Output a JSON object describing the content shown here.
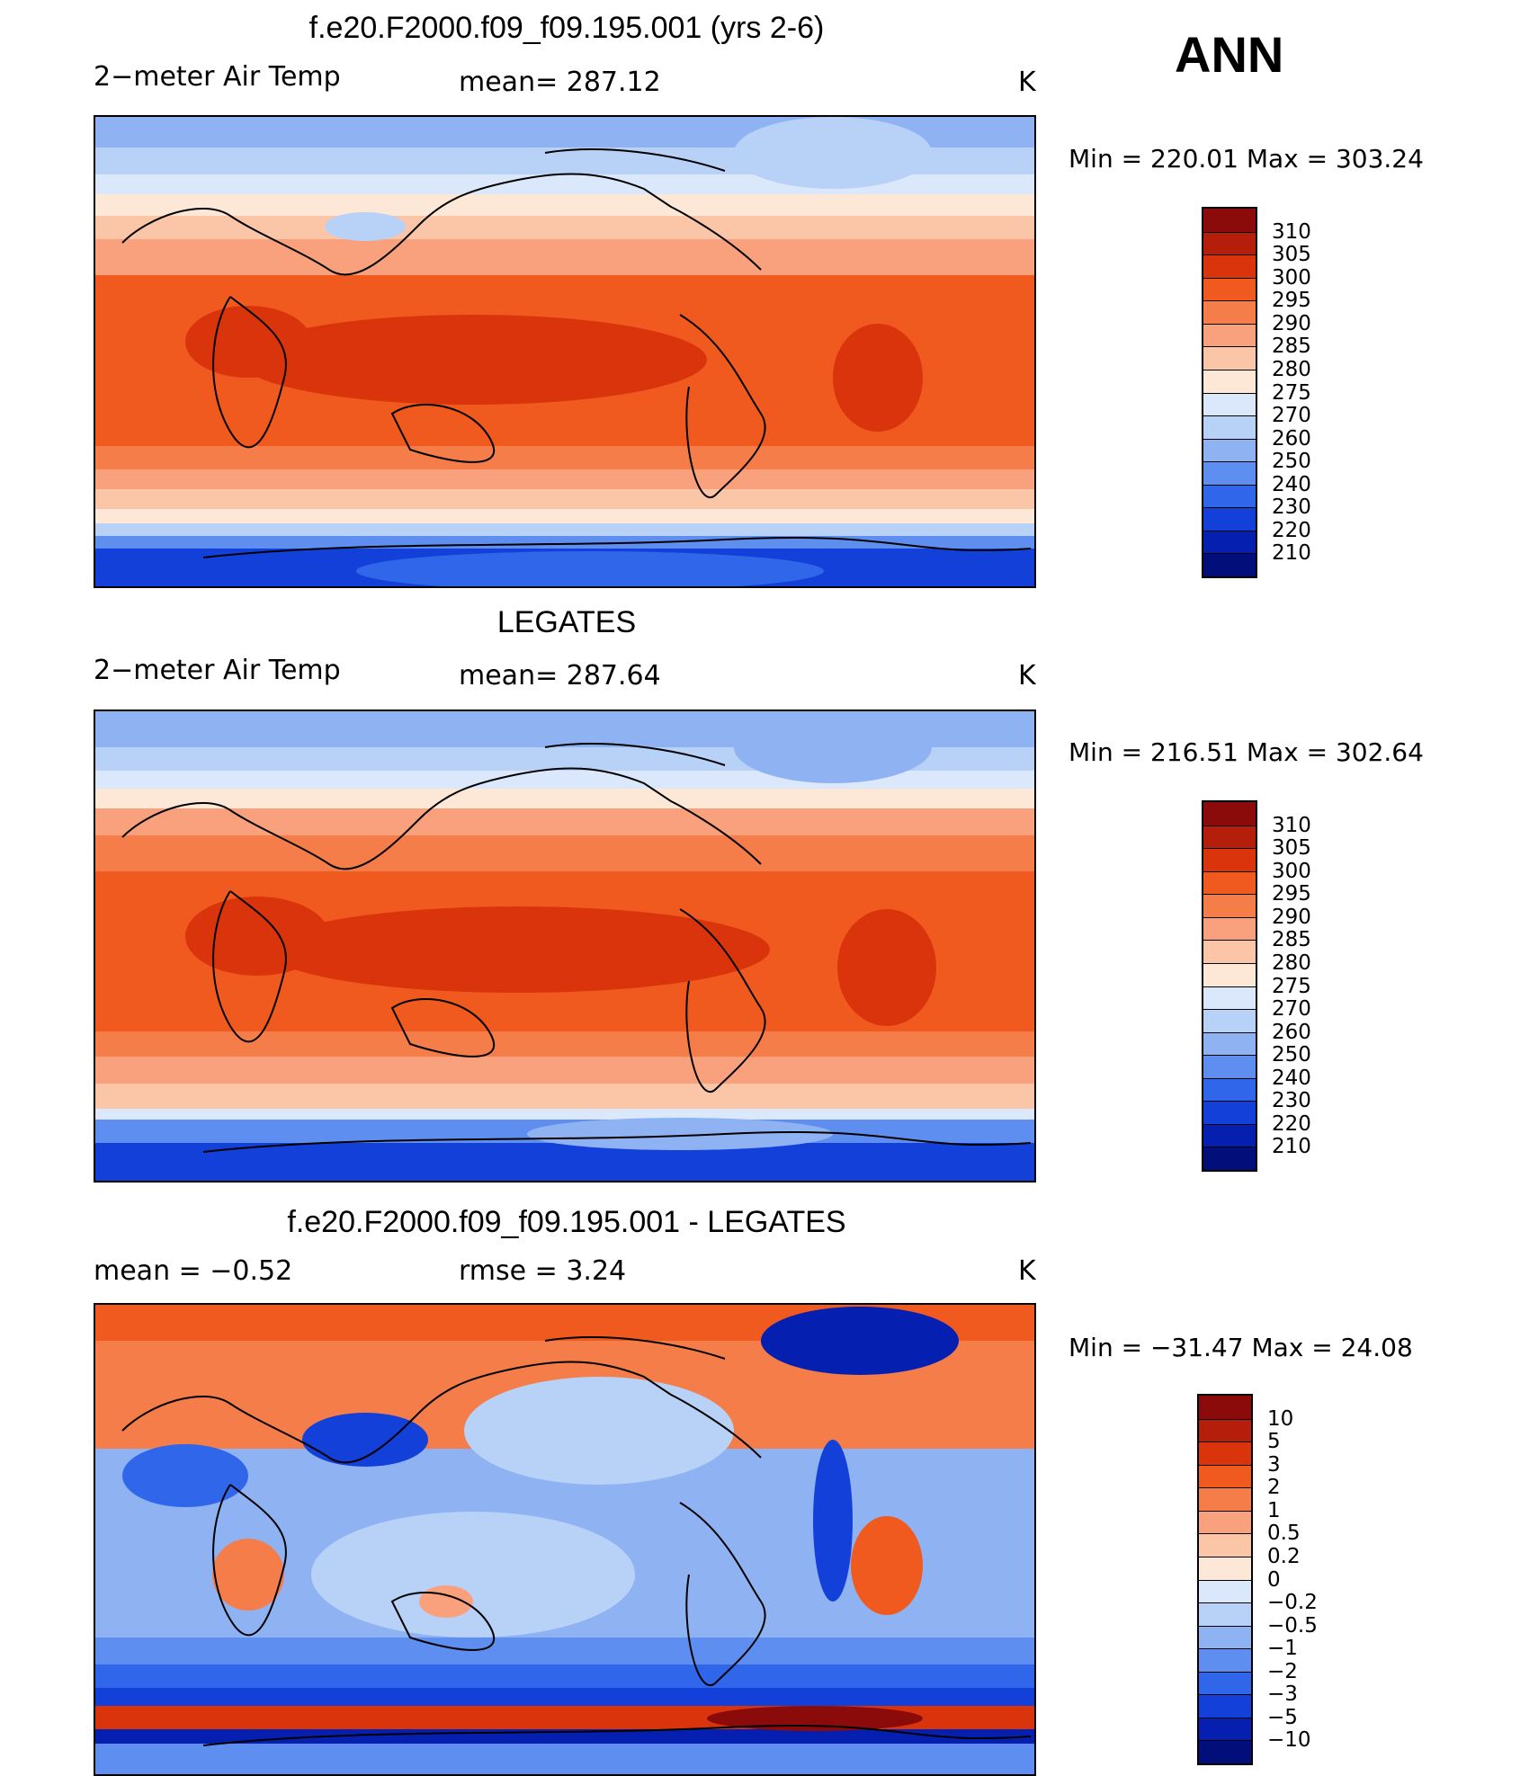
{
  "season": "ANN",
  "panels": [
    {
      "title": "f.e20.F2000.f09_f09.195.001 (yrs 2-6)",
      "left_label": "2−meter Air Temp",
      "center_label": "mean=  287.12",
      "units": "K",
      "minmax": "Min  =  220.01  Max  =  303.24",
      "map_kind": "model",
      "colorbar": {
        "labels": [
          "310",
          "305",
          "300",
          "295",
          "290",
          "285",
          "280",
          "275",
          "270",
          "260",
          "250",
          "240",
          "230",
          "220",
          "210"
        ],
        "colors": [
          "#8b0a0a",
          "#b41e0a",
          "#d9340c",
          "#f05a1e",
          "#f57d4a",
          "#f9a17c",
          "#fbc6a8",
          "#fde8d7",
          "#dbe8fb",
          "#b8d1f7",
          "#8fb3f2",
          "#5e8ff0",
          "#2f66ea",
          "#1240d9",
          "#0520b0",
          "#020f7a"
        ]
      }
    },
    {
      "title": "LEGATES",
      "left_label": "2−meter Air Temp",
      "center_label": "mean=  287.64",
      "units": "K",
      "minmax": "Min  =  216.51  Max  =  302.64",
      "map_kind": "obs",
      "colorbar": {
        "labels": [
          "310",
          "305",
          "300",
          "295",
          "290",
          "285",
          "280",
          "275",
          "270",
          "260",
          "250",
          "240",
          "230",
          "220",
          "210"
        ],
        "colors": [
          "#8b0a0a",
          "#b41e0a",
          "#d9340c",
          "#f05a1e",
          "#f57d4a",
          "#f9a17c",
          "#fbc6a8",
          "#fde8d7",
          "#dbe8fb",
          "#b8d1f7",
          "#8fb3f2",
          "#5e8ff0",
          "#2f66ea",
          "#1240d9",
          "#0520b0",
          "#020f7a"
        ]
      }
    },
    {
      "title": "f.e20.F2000.f09_f09.195.001 - LEGATES",
      "left_label": "mean  =    −0.52",
      "center_label": "rmse  =     3.24",
      "units": "K",
      "minmax": "Min  =  −31.47  Max  =   24.08",
      "map_kind": "diff",
      "colorbar": {
        "labels": [
          "10",
          "5",
          "3",
          "2",
          "1",
          "0.5",
          "0.2",
          "0",
          "−0.2",
          "−0.5",
          "−1",
          "−2",
          "−3",
          "−5",
          "−10"
        ],
        "colors": [
          "#8b0a0a",
          "#b41e0a",
          "#d9340c",
          "#f05a1e",
          "#f57d4a",
          "#f9a17c",
          "#fbc6a8",
          "#fde8d7",
          "#dbe8fb",
          "#b8d1f7",
          "#8fb3f2",
          "#5e8ff0",
          "#2f66ea",
          "#1240d9",
          "#0520b0",
          "#020f7a"
        ]
      }
    }
  ]
}
